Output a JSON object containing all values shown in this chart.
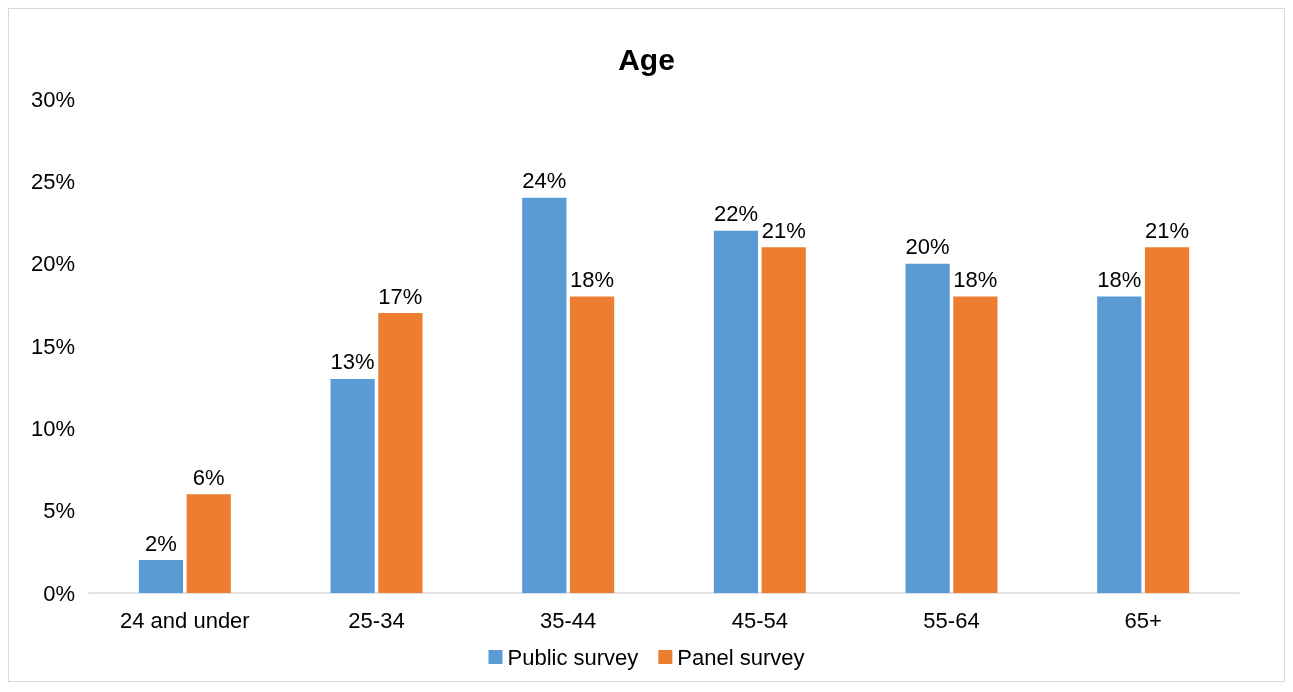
{
  "chart_data": {
    "type": "bar",
    "title": "Age",
    "categories": [
      "24 and under",
      "25-34",
      "35-44",
      "45-54",
      "55-64",
      "65+"
    ],
    "series": [
      {
        "name": "Public survey",
        "color": "#5b9bd5",
        "values": [
          2,
          13,
          24,
          22,
          20,
          18
        ],
        "value_labels": [
          "2%",
          "13%",
          "24%",
          "22%",
          "20%",
          "18%"
        ]
      },
      {
        "name": "Panel survey",
        "color": "#ed7d31",
        "values": [
          6,
          17,
          18,
          21,
          18,
          21
        ],
        "value_labels": [
          "6%",
          "17%",
          "18%",
          "21%",
          "18%",
          "21%"
        ]
      }
    ],
    "ylim": [
      0,
      30
    ],
    "yticks": [
      {
        "value": 0,
        "label": "0%"
      },
      {
        "value": 5,
        "label": "5%"
      },
      {
        "value": 10,
        "label": "10%"
      },
      {
        "value": 15,
        "label": "15%"
      },
      {
        "value": 20,
        "label": "20%"
      },
      {
        "value": 25,
        "label": "25%"
      },
      {
        "value": 30,
        "label": "30%"
      }
    ],
    "grid": false,
    "legend": "bottom"
  }
}
